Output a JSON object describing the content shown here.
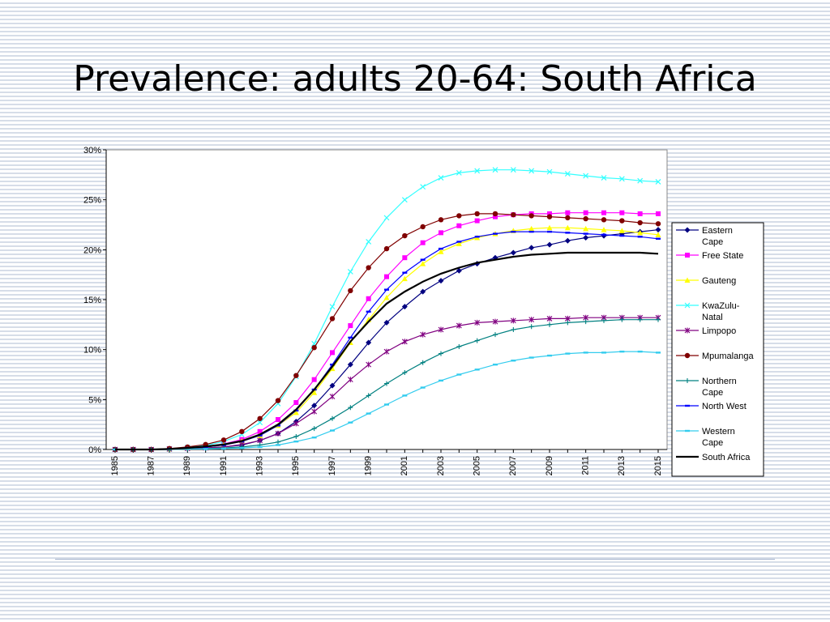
{
  "slide": {
    "title": "Prevalence: adults 20-64: South Africa"
  },
  "chart_data": {
    "type": "line",
    "title": "",
    "xlabel": "",
    "ylabel": "",
    "x": [
      1985,
      1986,
      1987,
      1988,
      1989,
      1990,
      1991,
      1992,
      1993,
      1994,
      1995,
      1996,
      1997,
      1998,
      1999,
      2000,
      2001,
      2002,
      2003,
      2004,
      2005,
      2006,
      2007,
      2008,
      2009,
      2010,
      2011,
      2012,
      2013,
      2014,
      2015
    ],
    "x_tick_labels": [
      "1985",
      "1987",
      "1989",
      "1991",
      "1993",
      "1995",
      "1997",
      "1999",
      "2001",
      "2003",
      "2005",
      "2007",
      "2009",
      "2011",
      "2013",
      "2015"
    ],
    "y_tick_labels": [
      "0%",
      "5%",
      "10%",
      "15%",
      "20%",
      "25%",
      "30%"
    ],
    "ylim": [
      0,
      30
    ],
    "y_unit": "%",
    "grid": false,
    "legend_position": "right",
    "series": [
      {
        "name": "Eastern Cape",
        "legend_lines": [
          "Eastern",
          "Cape"
        ],
        "color": "#000080",
        "marker": "diamond",
        "values": [
          0,
          0,
          0,
          0,
          0.1,
          0.15,
          0.25,
          0.45,
          0.9,
          1.6,
          2.8,
          4.4,
          6.4,
          8.5,
          10.7,
          12.7,
          14.3,
          15.8,
          16.9,
          17.9,
          18.6,
          19.2,
          19.7,
          20.2,
          20.5,
          20.9,
          21.2,
          21.4,
          21.6,
          21.8,
          22.0
        ]
      },
      {
        "name": "Free State",
        "legend_lines": [
          "Free State"
        ],
        "color": "#ff00ff",
        "marker": "square",
        "values": [
          0,
          0,
          0,
          0.05,
          0.15,
          0.3,
          0.55,
          1.0,
          1.8,
          3.0,
          4.7,
          7.0,
          9.7,
          12.4,
          15.1,
          17.3,
          19.2,
          20.7,
          21.7,
          22.4,
          22.9,
          23.3,
          23.5,
          23.6,
          23.6,
          23.7,
          23.7,
          23.7,
          23.7,
          23.6,
          23.6
        ]
      },
      {
        "name": "Gauteng",
        "legend_lines": [
          "Gauteng"
        ],
        "color": "#ffff00",
        "marker": "triangle",
        "values": [
          0,
          0,
          0,
          0.05,
          0.15,
          0.25,
          0.45,
          0.85,
          1.4,
          2.4,
          3.7,
          5.7,
          8.1,
          10.7,
          13.0,
          15.2,
          17.1,
          18.6,
          19.8,
          20.6,
          21.2,
          21.6,
          21.9,
          22.1,
          22.2,
          22.2,
          22.1,
          22.0,
          21.9,
          21.7,
          21.5
        ]
      },
      {
        "name": "KwaZulu-Natal",
        "legend_lines": [
          "KwaZulu-",
          "Natal"
        ],
        "color": "#33ffff",
        "marker": "x",
        "values": [
          0,
          0,
          0,
          0.05,
          0.2,
          0.4,
          0.8,
          1.5,
          2.7,
          4.6,
          7.3,
          10.6,
          14.3,
          17.8,
          20.8,
          23.2,
          25.0,
          26.3,
          27.2,
          27.7,
          27.9,
          28.0,
          28.0,
          27.9,
          27.8,
          27.6,
          27.4,
          27.2,
          27.1,
          26.9,
          26.8
        ]
      },
      {
        "name": "Limpopo",
        "legend_lines": [
          "Limpopo"
        ],
        "color": "#800080",
        "marker": "star",
        "values": [
          0,
          0,
          0,
          0.05,
          0.1,
          0.15,
          0.25,
          0.5,
          0.9,
          1.6,
          2.6,
          3.8,
          5.3,
          7.0,
          8.5,
          9.8,
          10.8,
          11.5,
          12.0,
          12.4,
          12.7,
          12.8,
          12.9,
          13.0,
          13.1,
          13.1,
          13.2,
          13.2,
          13.2,
          13.2,
          13.2
        ]
      },
      {
        "name": "Mpumalanga",
        "legend_lines": [
          "Mpumalanga"
        ],
        "color": "#800000",
        "marker": "circle",
        "values": [
          0,
          0,
          0,
          0.1,
          0.25,
          0.5,
          0.95,
          1.8,
          3.1,
          4.9,
          7.4,
          10.2,
          13.1,
          15.9,
          18.2,
          20.1,
          21.4,
          22.3,
          23.0,
          23.4,
          23.6,
          23.6,
          23.5,
          23.4,
          23.3,
          23.2,
          23.1,
          23.0,
          22.9,
          22.7,
          22.6
        ]
      },
      {
        "name": "Northern Cape",
        "legend_lines": [
          "Northern",
          "Cape"
        ],
        "color": "#008080",
        "marker": "plus",
        "values": [
          0,
          0,
          0,
          0,
          0.05,
          0.1,
          0.15,
          0.25,
          0.45,
          0.75,
          1.3,
          2.1,
          3.1,
          4.2,
          5.4,
          6.6,
          7.7,
          8.7,
          9.6,
          10.3,
          10.9,
          11.5,
          12.0,
          12.3,
          12.5,
          12.7,
          12.8,
          12.9,
          13.0,
          13.0,
          13.0
        ]
      },
      {
        "name": "North West",
        "legend_lines": [
          "North West"
        ],
        "color": "#0000ff",
        "marker": "dash",
        "values": [
          0,
          0,
          0,
          0.05,
          0.15,
          0.25,
          0.45,
          0.8,
          1.4,
          2.4,
          3.9,
          6.0,
          8.5,
          11.2,
          13.8,
          16.0,
          17.7,
          19.0,
          20.1,
          20.8,
          21.3,
          21.6,
          21.8,
          21.8,
          21.8,
          21.7,
          21.6,
          21.5,
          21.4,
          21.3,
          21.1
        ]
      },
      {
        "name": "Western Cape",
        "legend_lines": [
          "Western",
          "Cape"
        ],
        "color": "#33ccee",
        "marker": "dash",
        "values": [
          0,
          0,
          0,
          0,
          0.05,
          0.05,
          0.1,
          0.15,
          0.25,
          0.45,
          0.8,
          1.2,
          1.9,
          2.7,
          3.6,
          4.5,
          5.4,
          6.2,
          6.9,
          7.5,
          8.0,
          8.5,
          8.9,
          9.2,
          9.4,
          9.6,
          9.7,
          9.7,
          9.8,
          9.8,
          9.7
        ]
      },
      {
        "name": "South Africa",
        "legend_lines": [
          "South Africa"
        ],
        "color": "#000000",
        "marker": "none",
        "values": [
          0,
          0,
          0,
          0.05,
          0.15,
          0.3,
          0.5,
          0.85,
          1.5,
          2.5,
          4.0,
          6.0,
          8.3,
          10.8,
          12.8,
          14.6,
          15.8,
          16.8,
          17.6,
          18.2,
          18.7,
          19.0,
          19.3,
          19.5,
          19.6,
          19.7,
          19.7,
          19.7,
          19.7,
          19.7,
          19.6
        ]
      }
    ]
  }
}
